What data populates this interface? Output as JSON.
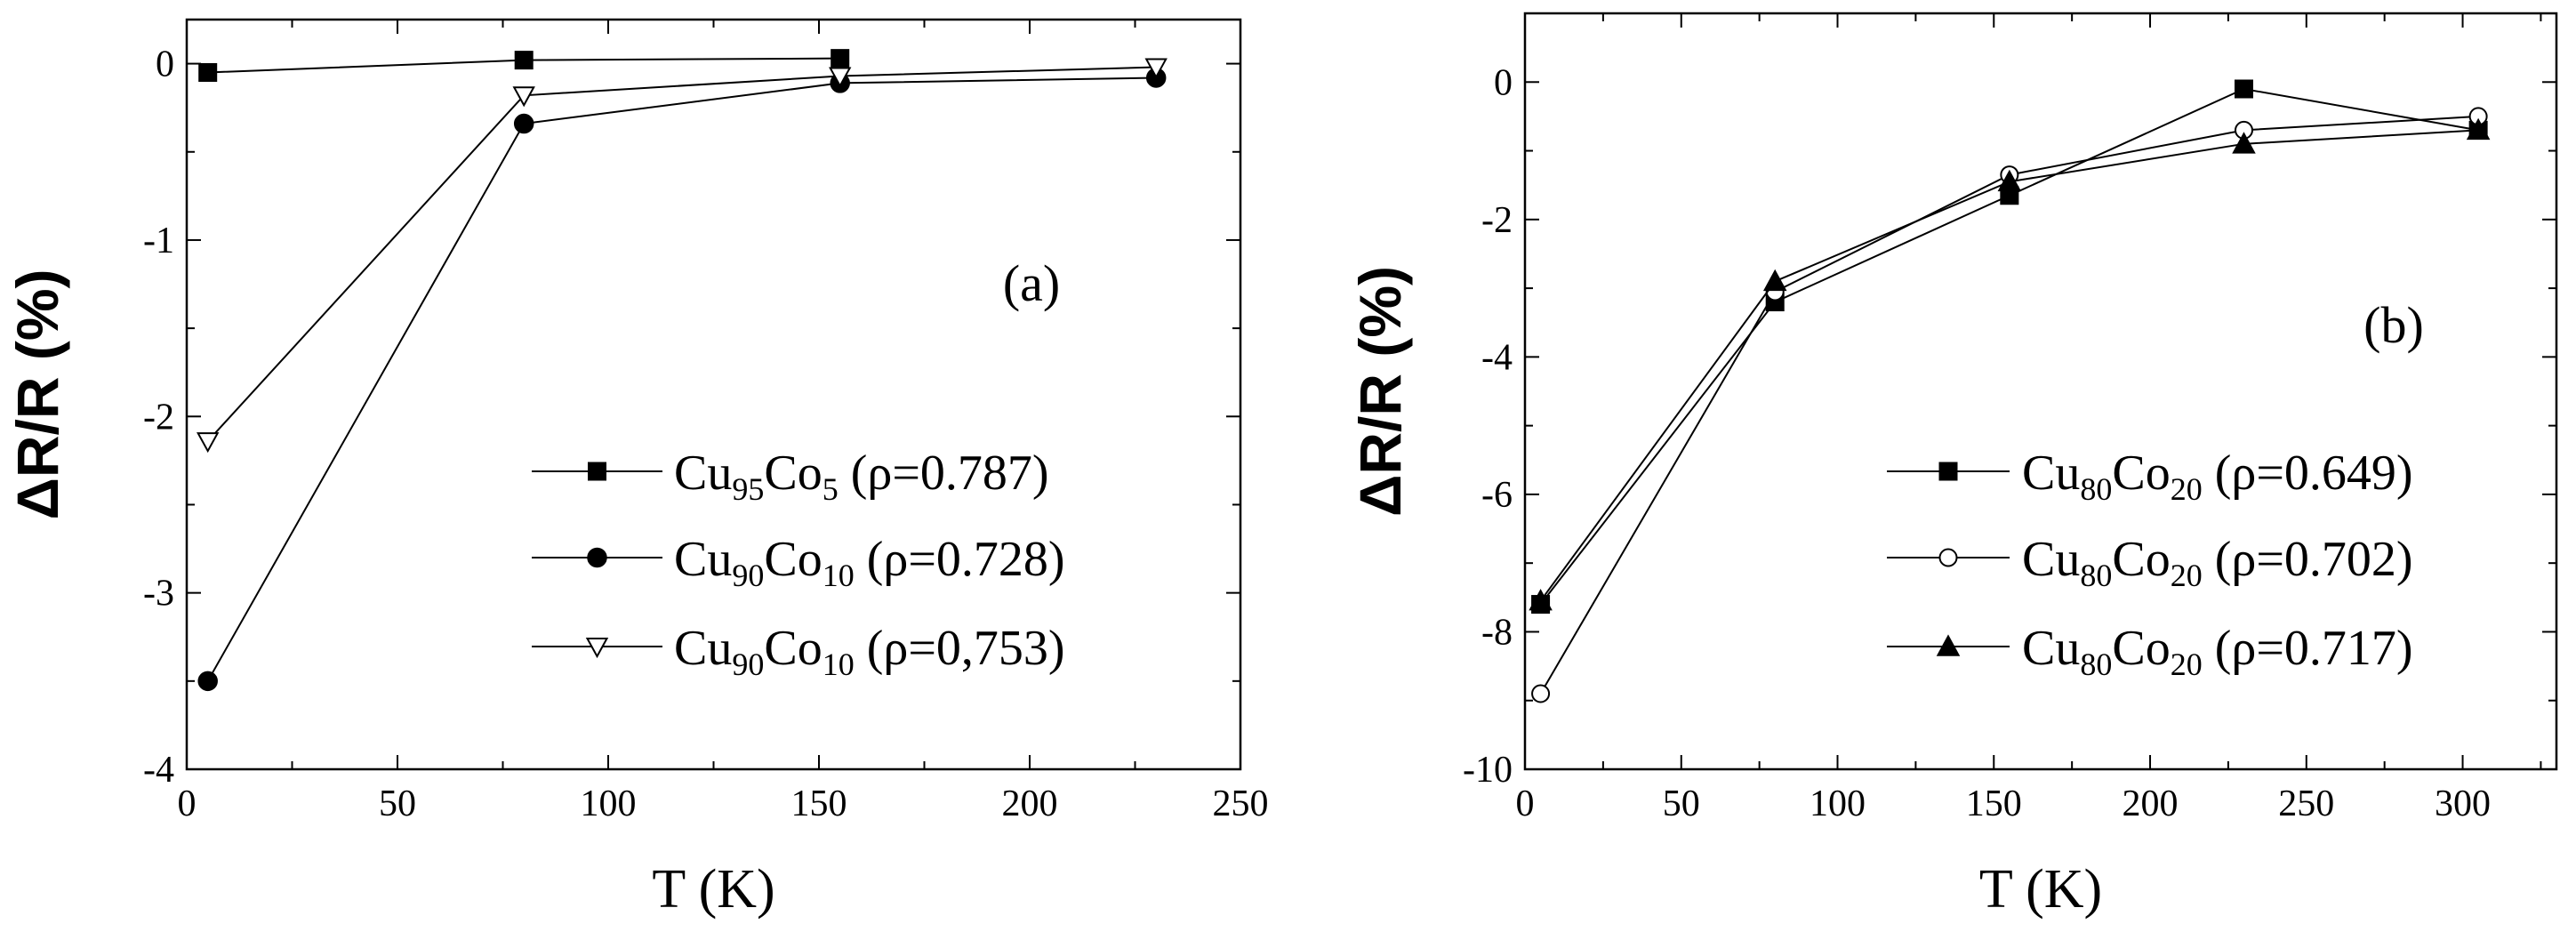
{
  "chart_data": [
    {
      "type": "line",
      "xlabel": "T (K)",
      "ylabel": "ΔR/R (%)",
      "panel_label": "(a)",
      "xlim": [
        0,
        250
      ],
      "ylim": [
        -4,
        0.25
      ],
      "xticks": [
        0,
        50,
        100,
        150,
        200,
        250
      ],
      "yticks": [
        -4,
        -3,
        -2,
        -1,
        0
      ],
      "grid": false,
      "legend_position": "bottom-right",
      "series": [
        {
          "name": "Cu95Co5 (ρ=0.787)",
          "label_parts": [
            "Cu",
            "95",
            "Co",
            "5",
            " (ρ=0.787)"
          ],
          "marker": "square-filled",
          "x": [
            5,
            80,
            155
          ],
          "y": [
            -0.05,
            0.02,
            0.03
          ]
        },
        {
          "name": "Cu90Co10 (ρ=0.728)",
          "label_parts": [
            "Cu",
            "90",
            "Co",
            "10",
            " (ρ=0.728)"
          ],
          "marker": "circle-filled",
          "x": [
            5,
            80,
            155,
            230
          ],
          "y": [
            -3.5,
            -0.34,
            -0.11,
            -0.08
          ]
        },
        {
          "name": "Cu90Co10 (ρ=0,753)",
          "label_parts": [
            "Cu",
            "90",
            "Co",
            "10",
            " (ρ=0,753)"
          ],
          "marker": "triangle-down-open",
          "x": [
            5,
            80,
            155,
            230
          ],
          "y": [
            -2.14,
            -0.18,
            -0.07,
            -0.02
          ]
        }
      ]
    },
    {
      "type": "line",
      "xlabel": "T (K)",
      "ylabel": "ΔR/R (%)",
      "panel_label": "(b)",
      "xlim": [
        0,
        330
      ],
      "ylim": [
        -10,
        1
      ],
      "xticks": [
        0,
        50,
        100,
        150,
        200,
        250,
        300
      ],
      "yticks": [
        -10,
        -8,
        -6,
        -4,
        -2,
        0
      ],
      "grid": false,
      "legend_position": "bottom-right",
      "series": [
        {
          "name": "Cu80Co20 (ρ=0.649)",
          "label_parts": [
            "Cu",
            "80",
            "Co",
            "20",
            " (ρ=0.649)"
          ],
          "marker": "square-filled",
          "x": [
            5,
            80,
            155,
            230,
            305
          ],
          "y": [
            -7.6,
            -3.2,
            -1.65,
            -0.1,
            -0.7
          ]
        },
        {
          "name": "Cu80Co20 (ρ=0.702)",
          "label_parts": [
            "Cu",
            "80",
            "Co",
            "20",
            " (ρ=0.702)"
          ],
          "marker": "circle-open",
          "x": [
            5,
            80,
            155,
            230,
            305
          ],
          "y": [
            -8.9,
            -3.05,
            -1.35,
            -0.7,
            -0.5
          ]
        },
        {
          "name": "Cu80Co20 (ρ=0.717)",
          "label_parts": [
            "Cu",
            "80",
            "Co",
            "20",
            " (ρ=0.717)"
          ],
          "marker": "triangle-up-filled",
          "x": [
            5,
            80,
            155,
            230,
            305
          ],
          "y": [
            -7.55,
            -2.9,
            -1.45,
            -0.9,
            -0.7
          ]
        }
      ]
    }
  ]
}
